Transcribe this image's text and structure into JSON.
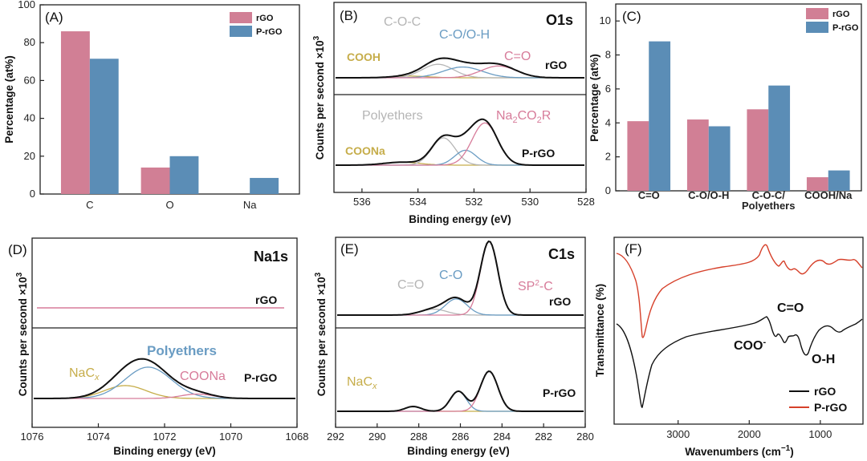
{
  "colors": {
    "rgo_bar": "#d17f95",
    "prgo_bar": "#5b8db6",
    "axis": "#222222",
    "envelope": "#111111",
    "ftir_rgo": "#111111",
    "ftir_prgo": "#d6402a",
    "yellow": "#c6ad4a",
    "grey": "#b5b5b5",
    "blue": "#6a9cc3",
    "pink": "#d77c9a"
  },
  "chart_data": [
    {
      "panel": "(A)",
      "type": "bar",
      "categories": [
        "C",
        "O",
        "Na"
      ],
      "series": [
        {
          "name": "rGO",
          "values": [
            86,
            14,
            0
          ]
        },
        {
          "name": "P-rGO",
          "values": [
            71.5,
            20,
            8.5
          ]
        }
      ],
      "ylabel": "Percentage (at%)",
      "ylim": [
        0,
        100
      ],
      "yticks": [
        "0",
        "20",
        "40",
        "60",
        "80",
        "100"
      ],
      "legend": [
        "rGO",
        "P-rGO"
      ]
    },
    {
      "panel": "(B)",
      "type": "line",
      "title": "O1s",
      "xlabel": "Binding energy (eV)",
      "ylabel": "Counts per second ×10",
      "ylabel_sup": "3",
      "xlim": [
        537,
        528
      ],
      "xticks": [
        "536",
        "534",
        "532",
        "530",
        "528"
      ],
      "top_trace": "rGO",
      "bottom_trace": "P-rGO",
      "top_peaks": [
        "C-O-C",
        "C-O/O-H",
        "C=O",
        "COOH"
      ],
      "bottom_peaks": [
        "Polyethers",
        "COONa"
      ],
      "bottom_peak_na": {
        "base": "Na",
        "sub1": "2",
        "mid": "CO",
        "sub2": "2",
        "tail": "R"
      },
      "rgo_components": [
        {
          "label": "COOH",
          "center": 534.3,
          "height": 0.05,
          "width": 0.9
        },
        {
          "label": "C-O-C",
          "center": 533.3,
          "height": 0.4,
          "width": 0.8
        },
        {
          "label": "C-O/O-H",
          "center": 532.4,
          "height": 0.32,
          "width": 1.0
        },
        {
          "label": "C=O",
          "center": 531.1,
          "height": 0.35,
          "width": 0.9
        }
      ],
      "prgo_components": [
        {
          "label": "COONa",
          "center": 534.6,
          "height": 0.06,
          "width": 0.9
        },
        {
          "label": "Polyethers",
          "center": 533.1,
          "height": 0.55,
          "width": 0.6
        },
        {
          "label": "C-O/O-H",
          "center": 532.3,
          "height": 0.3,
          "width": 0.55
        },
        {
          "label": "Na2CO2R",
          "center": 531.6,
          "height": 0.85,
          "width": 0.65
        }
      ]
    },
    {
      "panel": "(C)",
      "type": "bar",
      "categories": [
        "C=O",
        "C-O/O-H",
        "C-O-C/\nPolyethers",
        "COOH/Na"
      ],
      "category_lines": [
        [
          "C=O"
        ],
        [
          "C-O/O-H"
        ],
        [
          "C-O-C/",
          "Polyethers"
        ],
        [
          "COOH/Na"
        ]
      ],
      "series": [
        {
          "name": "rGO",
          "values": [
            4.1,
            4.2,
            4.8,
            0.8
          ]
        },
        {
          "name": "P-rGO",
          "values": [
            8.8,
            3.8,
            6.2,
            1.2
          ]
        }
      ],
      "ylabel": "Percentage (at%)",
      "ylim": [
        0,
        11
      ],
      "yticks": [
        "0",
        "2",
        "4",
        "6",
        "8",
        "10"
      ],
      "legend": [
        "rGO",
        "P-rGO"
      ]
    },
    {
      "panel": "(D)",
      "type": "line",
      "title": "Na1s",
      "xlabel": "Binding energy (eV)",
      "ylabel": "Counts per second ×10",
      "ylabel_sup": "3",
      "xlim": [
        1076,
        1068
      ],
      "xticks": [
        "1076",
        "1074",
        "1072",
        "1070",
        "1068"
      ],
      "top_trace": "rGO",
      "bottom_trace": "P-rGO",
      "peak_polyethers": "Polyethers",
      "peak_coona": "COONa",
      "peak_nacx": {
        "base": "NaC",
        "sub": "x"
      },
      "prgo_components": [
        {
          "label": "NaCx",
          "center": 1073.2,
          "height": 0.35,
          "width": 0.9
        },
        {
          "label": "Polyethers",
          "center": 1072.5,
          "height": 0.85,
          "width": 1.0
        },
        {
          "label": "COONa",
          "center": 1071.0,
          "height": 0.12,
          "width": 0.7
        }
      ]
    },
    {
      "panel": "(E)",
      "type": "line",
      "title": "C1s",
      "xlabel": "Binding energy (eV)",
      "ylabel": "Counts per second ×10",
      "ylabel_sup": "3",
      "xlim": [
        292,
        280
      ],
      "xticks": [
        "292",
        "290",
        "288",
        "286",
        "284",
        "282",
        "280"
      ],
      "top_trace": "rGO",
      "bottom_trace": "P-rGO",
      "peak_co": "C=O",
      "peak_c_o": "C-O",
      "peak_sp2": {
        "base": "SP",
        "sup": "2",
        "tail": "-C"
      },
      "peak_nacx": {
        "base": "NaC",
        "sub": "x"
      },
      "rgo_components": [
        {
          "label": "C=O",
          "center": 287.3,
          "height": 0.08,
          "width": 0.9
        },
        {
          "label": "C-O",
          "center": 286.2,
          "height": 0.22,
          "width": 0.75
        },
        {
          "label": "SP2-C",
          "center": 284.6,
          "height": 1.0,
          "width": 0.6
        }
      ],
      "prgo_components": [
        {
          "label": "NaCx",
          "center": 288.3,
          "height": 0.12,
          "width": 0.55
        },
        {
          "label": "C-O",
          "center": 286.1,
          "height": 0.5,
          "width": 0.55
        },
        {
          "label": "SP2-C",
          "center": 284.6,
          "height": 1.0,
          "width": 0.6
        }
      ]
    },
    {
      "panel": "(F)",
      "type": "line",
      "xlabel": "Wavenumbers (cm",
      "xlabel_sup": "−1",
      "xlabel_tail": ")",
      "ylabel": "Transmittance (%)",
      "xlim": [
        3900,
        400
      ],
      "xticks": [
        "3000",
        "2000",
        "1000"
      ],
      "annotation_co": "C=O",
      "annotation_coo": "COO",
      "annotation_coo_sup": "-",
      "annotation_oh": "O-H",
      "legend": [
        "rGO",
        "P-rGO"
      ]
    }
  ]
}
